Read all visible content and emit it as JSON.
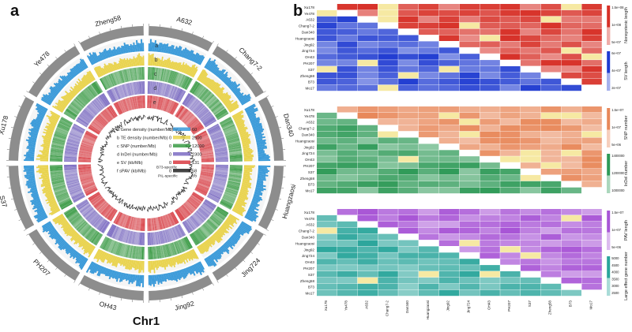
{
  "panel_a": {
    "label": "a",
    "chromosome_title": "Chr1",
    "genomes": [
      "A632",
      "Chang7-2",
      "Dan340",
      "Huangzaosi",
      "Jing724",
      "Jing92",
      "OH43",
      "PH207",
      "S37",
      "Xu178",
      "Ye478",
      "Zheng58"
    ],
    "track_letters": [
      "a",
      "b",
      "c",
      "d",
      "e",
      "f"
    ],
    "legend": [
      {
        "name": "a Gene density (number/Mb)",
        "min": "0",
        "max": "60"
      },
      {
        "name": "b TE density (number/Mb)",
        "min": "0",
        "max": "2500"
      },
      {
        "name": "c SNP (number/Mb)",
        "min": "0",
        "max": "12000"
      },
      {
        "name": "d InDel (number/Mb)",
        "min": "0",
        "max": "2300"
      },
      {
        "name": "e SV (kb/Mb)",
        "min": "0",
        "max": "131"
      },
      {
        "name": "f sPAV (kb/Mb)",
        "min": "0",
        "max": "58",
        "top_label": "B73-specific",
        "bottom_label": "PIL-specific",
        "bottom_max": "65"
      }
    ],
    "colors": {
      "chrom": "#8d8d8d",
      "gene": "#3a9ad9",
      "te": "#e9d34d",
      "snp": "#3a9b45",
      "indel": "#7b6bc2",
      "sv": "#d8383f",
      "pav": "#222222"
    }
  },
  "panel_b": {
    "label": "b",
    "genomes": [
      "Xu178",
      "Ye478",
      "A632",
      "Chang7-2",
      "Dan340",
      "Huangzaosi",
      "Jing92",
      "Jing724",
      "OH43",
      "PH207",
      "S37",
      "Zheng58",
      "B73",
      "Mo17"
    ],
    "x_order": [
      "Xu178",
      "Ye478",
      "A632",
      "Chang7-2",
      "Dan340",
      "Huangzaosi",
      "Jing92",
      "Jing724",
      "OH43",
      "PH207",
      "S37",
      "Zheng58",
      "B73",
      "Mo17"
    ],
    "blocks": [
      {
        "name": "Nonsyntenic length / SV length",
        "legends": [
          {
            "title": "Nonsyntenic length",
            "ticks": [
              "1.5e+08",
              "1e+08",
              "5e+07"
            ]
          },
          {
            "title": "SV length",
            "ticks": [
              "6e+07",
              "4e+07",
              "2e+07"
            ]
          }
        ]
      },
      {
        "name": "SNP number / InDel number",
        "legends": [
          {
            "title": "SNP number",
            "ticks": [
              "1.5e+07",
              "1e+07",
              "5e+06"
            ]
          },
          {
            "title": "InDel number",
            "ticks": [
              "1400000",
              "1200000",
              "1000000"
            ]
          }
        ]
      },
      {
        "name": "PAV length / Large effect gene number",
        "legends": [
          {
            "title": "PAV length",
            "ticks": [
              "1.5e+07",
              "1e+07",
              "5e+06"
            ]
          },
          {
            "title": "Large effect gene number",
            "ticks": [
              "5000",
              "4500",
              "4000",
              "3500",
              "3000",
              "2500"
            ]
          }
        ]
      }
    ],
    "colors": {
      "red": "#d73027",
      "blue": "#1f3bd1",
      "orange": "#e8885a",
      "green": "#2e9a57",
      "purple": "#a855d6",
      "teal": "#2aa59b",
      "diag": "#ffffff"
    }
  }
}
